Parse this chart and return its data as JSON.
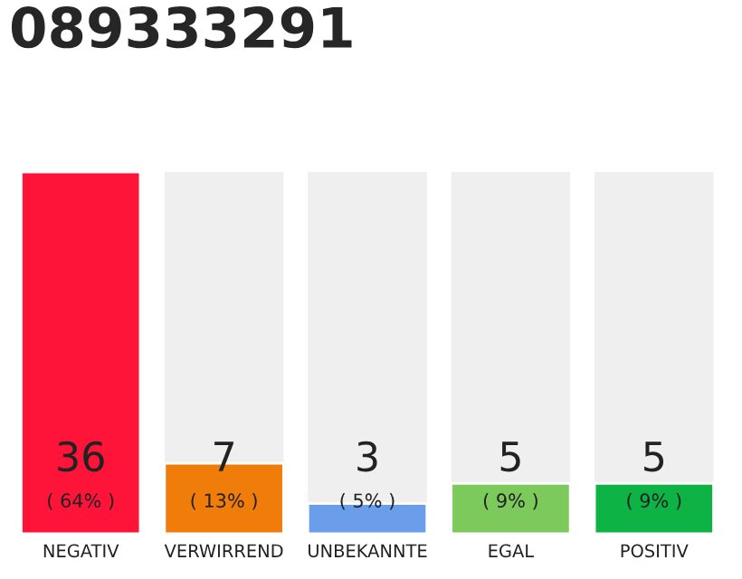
{
  "chart_data": {
    "type": "bar",
    "title": "089333291",
    "categories": [
      "NEGATIV",
      "VERWIRREND",
      "UNBEKANNTE",
      "EGAL",
      "POSITIV"
    ],
    "values": [
      36,
      7,
      3,
      5,
      5
    ],
    "colors": [
      "#ff1439",
      "#f07c0a",
      "#6a9eeb",
      "#7cc95c",
      "#0db345"
    ],
    "data_labels": true,
    "annotations": [
      "( 64% )",
      "( 13% )",
      "( 5% )",
      "( 9% )",
      "( 9% )"
    ]
  }
}
